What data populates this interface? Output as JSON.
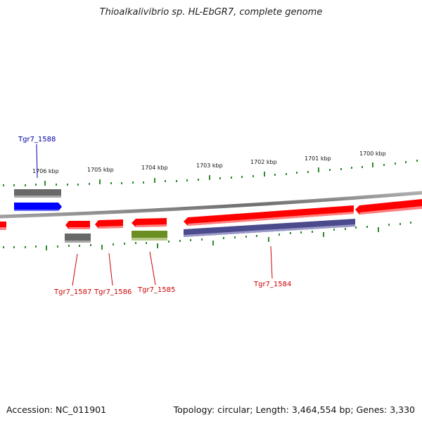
{
  "title": "Thioalkalivibrio sp. HL-EbGR7, complete genome",
  "footer": {
    "accession": "Accession: NC_011901",
    "stats": "Topology: circular; Length: 3,464,554 bp; Genes: 3,330"
  },
  "scale_labels": [
    "1706 kbp",
    "1705 kbp",
    "1704 kbp",
    "1703 kbp",
    "1702 kbp",
    "1701 kbp",
    "1700 kbp"
  ],
  "gene_labels": [
    {
      "name": "Tgr7_1588",
      "color": "#0000aa"
    },
    {
      "name": "Tgr7_1587",
      "color": "#cc0000"
    },
    {
      "name": "Tgr7_1586",
      "color": "#cc0000"
    },
    {
      "name": "Tgr7_1585",
      "color": "#cc0000"
    },
    {
      "name": "Tgr7_1584",
      "color": "#cc0000"
    }
  ],
  "colors": {
    "backbone": "#7a7a7a",
    "cds": "#ff0000",
    "blue_feature": "#0000ff",
    "gray_feature": "#666666",
    "olive_feature": "#6b8e23",
    "purple_feature": "#4b4a8c",
    "tick": "#2e8b2e"
  }
}
